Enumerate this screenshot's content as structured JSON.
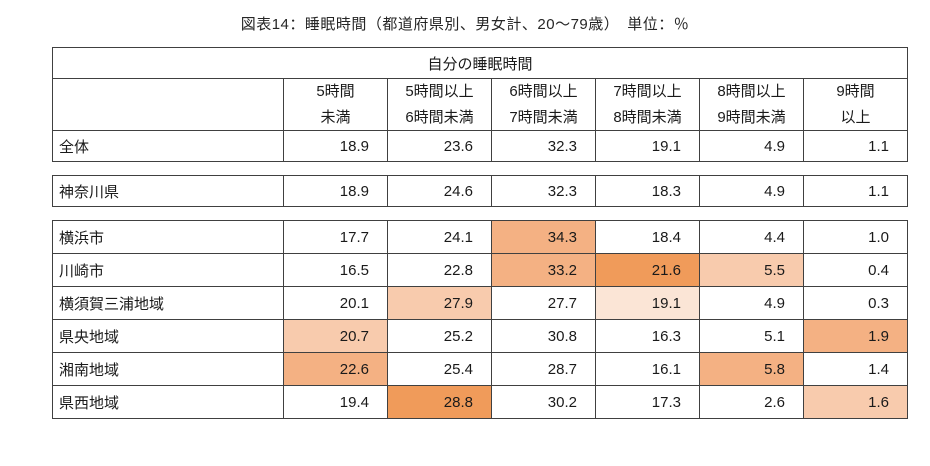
{
  "page": {
    "title": "図表14：睡眠時間（都道府県別、男女計、20〜79歳）　単位：％"
  },
  "table": {
    "merged_header": "自分の睡眠時間",
    "column_headers": [
      "5時間\n未満",
      "5時間以上\n6時間未満",
      "6時間以上\n7時間未満",
      "7時間以上\n8時間未満",
      "8時間以上\n9時間未満",
      "9時間\n以上"
    ],
    "highlight_colors": [
      "",
      "#fbe5d6",
      "#f8cbad",
      "#f4b183",
      "#f09b5a"
    ],
    "sections": [
      {
        "rows": [
          {
            "label": "全体",
            "values": [
              "18.9",
              "23.6",
              "32.3",
              "19.1",
              "4.9",
              "1.1"
            ],
            "highlights": [
              0,
              0,
              0,
              0,
              0,
              0
            ]
          }
        ]
      },
      {
        "rows": [
          {
            "label": "神奈川県",
            "values": [
              "18.9",
              "24.6",
              "32.3",
              "18.3",
              "4.9",
              "1.1"
            ],
            "highlights": [
              0,
              0,
              0,
              0,
              0,
              0
            ]
          }
        ]
      },
      {
        "rows": [
          {
            "label": "横浜市",
            "values": [
              "17.7",
              "24.1",
              "34.3",
              "18.4",
              "4.4",
              "1.0"
            ],
            "highlights": [
              0,
              0,
              3,
              0,
              0,
              0
            ]
          },
          {
            "label": "川崎市",
            "values": [
              "16.5",
              "22.8",
              "33.2",
              "21.6",
              "5.5",
              "0.4"
            ],
            "highlights": [
              0,
              0,
              3,
              4,
              2,
              0
            ]
          },
          {
            "label": "横須賀三浦地域",
            "values": [
              "20.1",
              "27.9",
              "27.7",
              "19.1",
              "4.9",
              "0.3"
            ],
            "highlights": [
              0,
              2,
              0,
              1,
              0,
              0
            ]
          },
          {
            "label": "県央地域",
            "values": [
              "20.7",
              "25.2",
              "30.8",
              "16.3",
              "5.1",
              "1.9"
            ],
            "highlights": [
              2,
              0,
              0,
              0,
              0,
              3
            ]
          },
          {
            "label": "湘南地域",
            "values": [
              "22.6",
              "25.4",
              "28.7",
              "16.1",
              "5.8",
              "1.4"
            ],
            "highlights": [
              3,
              0,
              0,
              0,
              3,
              0
            ]
          },
          {
            "label": "県西地域",
            "values": [
              "19.4",
              "28.8",
              "30.2",
              "17.3",
              "2.6",
              "1.6"
            ],
            "highlights": [
              0,
              4,
              0,
              0,
              0,
              2
            ]
          }
        ]
      }
    ]
  },
  "chart_data": {
    "type": "table",
    "title": "図表14：睡眠時間（都道府県別、男女計、20〜79歳）",
    "unit": "%",
    "group_header": "自分の睡眠時間",
    "columns": [
      "5時間未満",
      "5時間以上6時間未満",
      "6時間以上7時間未満",
      "7時間以上8時間未満",
      "8時間以上9時間未満",
      "9時間以上"
    ],
    "rows": [
      {
        "label": "全体",
        "values": [
          18.9,
          23.6,
          32.3,
          19.1,
          4.9,
          1.1
        ]
      },
      {
        "label": "神奈川県",
        "values": [
          18.9,
          24.6,
          32.3,
          18.3,
          4.9,
          1.1
        ]
      },
      {
        "label": "横浜市",
        "values": [
          17.7,
          24.1,
          34.3,
          18.4,
          4.4,
          1.0
        ]
      },
      {
        "label": "川崎市",
        "values": [
          16.5,
          22.8,
          33.2,
          21.6,
          5.5,
          0.4
        ]
      },
      {
        "label": "横須賀三浦地域",
        "values": [
          20.1,
          27.9,
          27.7,
          19.1,
          4.9,
          0.3
        ]
      },
      {
        "label": "県央地域",
        "values": [
          20.7,
          25.2,
          30.8,
          16.3,
          5.1,
          1.9
        ]
      },
      {
        "label": "湘南地域",
        "values": [
          22.6,
          25.4,
          28.7,
          16.1,
          5.8,
          1.4
        ]
      },
      {
        "label": "県西地域",
        "values": [
          19.4,
          28.8,
          30.2,
          17.3,
          2.6,
          1.6
        ]
      }
    ]
  }
}
